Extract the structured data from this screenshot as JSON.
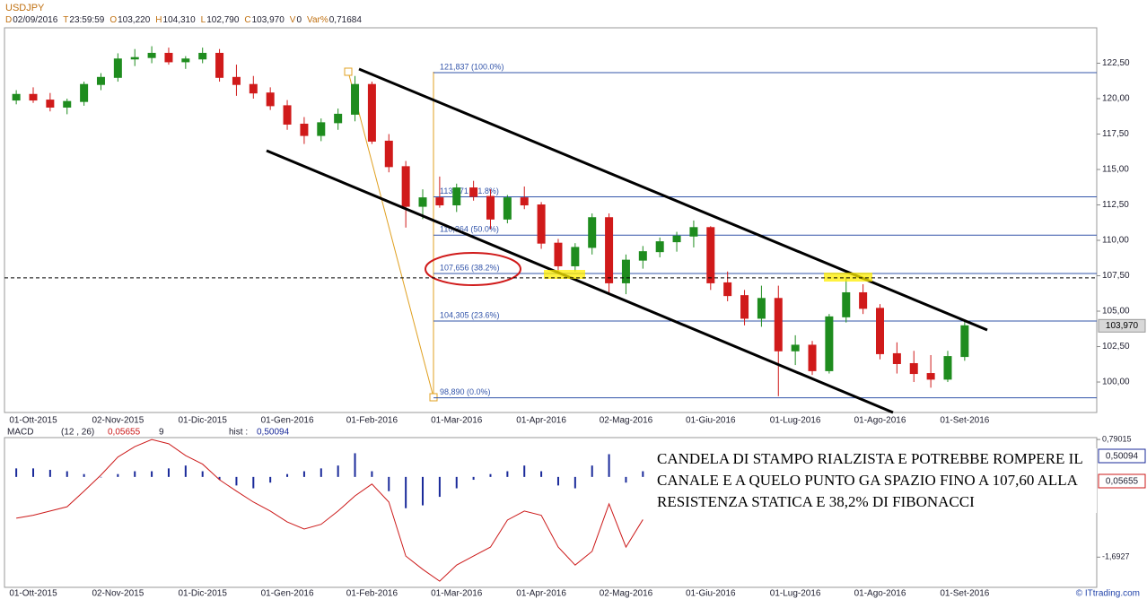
{
  "chart_data": [
    {
      "type": "candlestick",
      "title": "USDJPY",
      "info": [
        {
          "key": "D",
          "value": "02/09/2016"
        },
        {
          "key": "T",
          "value": "23:59:59"
        },
        {
          "key": "O",
          "value": "103,220"
        },
        {
          "key": "H",
          "value": "104,310"
        },
        {
          "key": "L",
          "value": "102,790"
        },
        {
          "key": "C",
          "value": "103,970"
        },
        {
          "key": "V",
          "value": "0"
        },
        {
          "key": "Var%",
          "value": "0,71684"
        }
      ],
      "categories": [
        null,
        "01-Ott-2015",
        null,
        null,
        null,
        null,
        "02-Nov-2015",
        null,
        null,
        null,
        null,
        "01-Dic-2015",
        null,
        null,
        null,
        null,
        "01-Gen-2016",
        null,
        null,
        null,
        null,
        "01-Feb-2016",
        null,
        null,
        null,
        null,
        "01-Mar-2016",
        null,
        null,
        null,
        null,
        "01-Apr-2016",
        null,
        null,
        null,
        null,
        "02-Mag-2016",
        null,
        null,
        null,
        null,
        "01-Giu-2016",
        null,
        null,
        null,
        null,
        "01-Lug-2016",
        null,
        null,
        null,
        null,
        "01-Ago-2016",
        null,
        null,
        null,
        null,
        "01-Set-2016"
      ],
      "open": [
        119.9,
        120.3,
        119.9,
        119.4,
        119.8,
        121.0,
        121.5,
        122.8,
        122.9,
        123.2,
        122.6,
        122.8,
        123.2,
        121.5,
        121.0,
        120.4,
        119.5,
        118.2,
        117.4,
        118.3,
        118.9,
        121.0,
        117.0,
        115.2,
        112.4,
        113.0,
        112.5,
        113.7,
        113.1,
        111.5,
        113.0,
        112.5,
        109.8,
        108.2,
        109.5,
        111.6,
        107.0,
        108.6,
        109.2,
        109.9,
        110.3,
        110.9,
        107.0,
        106.1,
        104.5,
        105.9,
        102.2,
        102.6,
        100.8,
        104.6,
        106.3,
        105.2,
        102.0,
        101.3,
        100.6,
        100.2,
        101.8
      ],
      "high": [
        120.6,
        120.8,
        120.4,
        120.0,
        121.2,
        121.8,
        123.2,
        123.5,
        123.7,
        123.6,
        123.0,
        123.6,
        123.5,
        122.4,
        121.6,
        120.8,
        119.9,
        118.7,
        118.6,
        119.3,
        121.6,
        121.2,
        117.5,
        115.6,
        113.6,
        114.5,
        114.0,
        114.2,
        113.6,
        113.2,
        113.8,
        112.7,
        110.1,
        109.8,
        111.9,
        111.9,
        109.0,
        109.6,
        110.2,
        110.6,
        111.4,
        111.0,
        107.8,
        106.5,
        106.8,
        106.8,
        103.3,
        102.9,
        104.8,
        107.4,
        106.9,
        105.5,
        102.8,
        102.2,
        101.9,
        102.2,
        104.31
      ],
      "low": [
        119.6,
        119.7,
        119.1,
        118.9,
        119.5,
        120.6,
        121.2,
        122.3,
        122.5,
        122.4,
        122.1,
        122.5,
        121.2,
        120.2,
        120.0,
        119.2,
        117.8,
        116.8,
        117.0,
        117.8,
        118.4,
        116.8,
        114.8,
        110.9,
        111.5,
        112.3,
        112.0,
        112.8,
        110.8,
        111.2,
        112.2,
        109.4,
        107.6,
        107.8,
        109.0,
        106.3,
        106.2,
        108.0,
        108.8,
        109.2,
        109.5,
        106.5,
        105.7,
        104.0,
        103.9,
        99.0,
        101.2,
        100.5,
        100.6,
        104.2,
        104.8,
        101.6,
        100.6,
        100.0,
        99.6,
        100.0,
        101.5
      ],
      "close": [
        120.3,
        119.9,
        119.4,
        119.8,
        121.0,
        121.5,
        122.8,
        122.9,
        123.2,
        122.6,
        122.8,
        123.2,
        121.5,
        121.0,
        120.4,
        119.5,
        118.2,
        117.4,
        118.3,
        118.9,
        121.0,
        117.0,
        115.2,
        112.4,
        113.0,
        112.5,
        113.7,
        113.1,
        111.5,
        113.0,
        112.5,
        109.8,
        108.2,
        109.5,
        111.6,
        107.0,
        108.6,
        109.2,
        109.9,
        110.3,
        110.9,
        107.0,
        106.1,
        104.5,
        105.9,
        102.2,
        102.6,
        100.8,
        104.6,
        106.3,
        105.2,
        102.0,
        101.3,
        100.6,
        100.2,
        101.8,
        103.97
      ],
      "up_color": "#1e8c1e",
      "down_color": "#d01a1a",
      "ylim": [
        97.85,
        125.0
      ],
      "yticks": [
        {
          "value": 100,
          "label": "100,00"
        },
        {
          "value": 102.5,
          "label": "102,50"
        },
        {
          "value": 105,
          "label": "105,00"
        },
        {
          "value": 107.5,
          "label": "107,50"
        },
        {
          "value": 110,
          "label": "110,00"
        },
        {
          "value": 112.5,
          "label": "112,50"
        },
        {
          "value": 115,
          "label": "115,00"
        },
        {
          "value": 117.5,
          "label": "117,50"
        },
        {
          "value": 120,
          "label": "120,00"
        },
        {
          "value": 122.5,
          "label": "122,50"
        }
      ],
      "fibonacci": {
        "color": "#3355aa",
        "levels": [
          121.837,
          113.071,
          110.364,
          107.656,
          104.305,
          98.89
        ],
        "labels": [
          "121,837 (100.0%)",
          "113,071 (61.8%)",
          "110,364 (50.0%)",
          "107,656 (38.2%)",
          "104,305 (23.6%)",
          "98,890 (0.0%)"
        ]
      },
      "resistance_level": 107.35,
      "last_price": {
        "value": 103.97,
        "label": "103,970"
      }
    },
    {
      "type": "macd",
      "title": "MACD",
      "params": "(12 , 26)",
      "macd_value": "0,05655",
      "signal_period": "9",
      "hist_label": "hist :",
      "hist_value": "0,50094",
      "macd_color": "#cc1a1a",
      "hist_color": "#1a2a9a",
      "macd": [
        -0.87,
        -0.81,
        -0.72,
        -0.63,
        -0.3,
        0.04,
        0.42,
        0.64,
        0.79,
        0.7,
        0.45,
        0.27,
        -0.06,
        -0.3,
        -0.53,
        -0.72,
        -0.95,
        -1.1,
        -1.0,
        -0.72,
        -0.4,
        -0.15,
        -0.53,
        -1.67,
        -1.95,
        -2.2,
        -1.86,
        -1.67,
        -1.48,
        -0.91,
        -0.72,
        -0.81,
        -1.48,
        -1.86,
        -1.57,
        -0.57,
        -1.48,
        -0.9,
        null,
        null,
        null,
        null,
        null,
        null,
        null,
        null,
        null,
        null,
        null,
        null,
        null,
        null,
        null,
        null,
        null,
        null,
        null
      ],
      "hist": [
        0.18,
        0.18,
        0.15,
        0.12,
        0.06,
        0.0,
        0.06,
        0.12,
        0.12,
        0.18,
        0.24,
        0.12,
        -0.06,
        -0.18,
        -0.24,
        -0.12,
        0.06,
        0.12,
        0.18,
        0.24,
        0.5,
        0.12,
        -0.3,
        -0.66,
        -0.6,
        -0.42,
        -0.24,
        -0.06,
        0.06,
        0.12,
        0.24,
        0.12,
        -0.18,
        -0.24,
        0.24,
        0.48,
        -0.12,
        0.12,
        null,
        null,
        null,
        null,
        null,
        null,
        null,
        null,
        null,
        null,
        null,
        null,
        null,
        null,
        null,
        null,
        null,
        null,
        null
      ],
      "ylim": [
        -2.33,
        0.83
      ],
      "yticks": [
        {
          "value": 0.79015,
          "label": "0,79015"
        },
        {
          "value": -1.6927,
          "label": "-1,6927"
        }
      ],
      "annotation": "CANDELA DI STAMPO RIALZISTA E POTREBBE ROMPERE IL CANALE E A QUELO PUNTO GA SPAZIO FINO A 107,60 ALLA RESISTENZA STATICA E 38,2% DI FIBONACCI"
    }
  ],
  "watermark": "© ITtrading.com"
}
